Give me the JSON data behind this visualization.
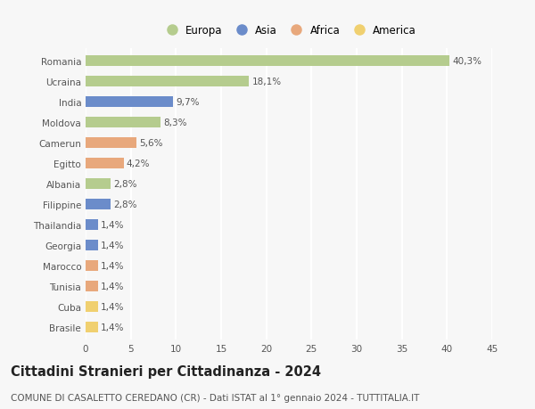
{
  "categories": [
    "Romania",
    "Ucraina",
    "India",
    "Moldova",
    "Camerun",
    "Egitto",
    "Albania",
    "Filippine",
    "Thailandia",
    "Georgia",
    "Marocco",
    "Tunisia",
    "Cuba",
    "Brasile"
  ],
  "values": [
    40.3,
    18.1,
    9.7,
    8.3,
    5.6,
    4.2,
    2.8,
    2.8,
    1.4,
    1.4,
    1.4,
    1.4,
    1.4,
    1.4
  ],
  "labels": [
    "40,3%",
    "18,1%",
    "9,7%",
    "8,3%",
    "5,6%",
    "4,2%",
    "2,8%",
    "2,8%",
    "1,4%",
    "1,4%",
    "1,4%",
    "1,4%",
    "1,4%",
    "1,4%"
  ],
  "continents": [
    "Europa",
    "Europa",
    "Asia",
    "Europa",
    "Africa",
    "Africa",
    "Europa",
    "Asia",
    "Asia",
    "Asia",
    "Africa",
    "Africa",
    "America",
    "America"
  ],
  "continent_colors": {
    "Europa": "#b5cc8e",
    "Asia": "#6b8cca",
    "Africa": "#e8a87c",
    "America": "#f0d070"
  },
  "legend_order": [
    "Europa",
    "Asia",
    "Africa",
    "America"
  ],
  "title": "Cittadini Stranieri per Cittadinanza - 2024",
  "subtitle": "COMUNE DI CASALETTO CEREDANO (CR) - Dati ISTAT al 1° gennaio 2024 - TUTTITALIA.IT",
  "xlim": [
    0,
    45
  ],
  "xticks": [
    0,
    5,
    10,
    15,
    20,
    25,
    30,
    35,
    40,
    45
  ],
  "background_color": "#f7f7f7",
  "plot_bg_color": "#f7f7f7",
  "grid_color": "#ffffff",
  "bar_height": 0.55,
  "title_fontsize": 10.5,
  "subtitle_fontsize": 7.5,
  "label_fontsize": 7.5,
  "tick_fontsize": 7.5,
  "legend_fontsize": 8.5,
  "text_color": "#555555"
}
